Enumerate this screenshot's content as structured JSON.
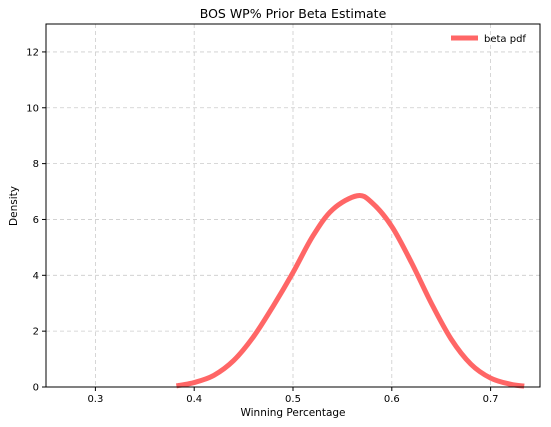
{
  "chart_data": {
    "type": "line",
    "title": "BOS WP% Prior Beta Estimate",
    "xlabel": "Winning Percentage",
    "ylabel": "Density",
    "xlim": [
      0.25,
      0.75
    ],
    "ylim": [
      0,
      13
    ],
    "xticks": [
      0.3,
      0.4,
      0.5,
      0.6,
      0.7
    ],
    "xtick_labels": [
      "0.3",
      "0.4",
      "0.5",
      "0.6",
      "0.7"
    ],
    "yticks": [
      0,
      2,
      4,
      6,
      8,
      10,
      12
    ],
    "ytick_labels": [
      "0",
      "2",
      "4",
      "6",
      "8",
      "10",
      "12"
    ],
    "grid": true,
    "legend": {
      "position": "top-right",
      "entries": [
        "beta pdf"
      ]
    },
    "series": [
      {
        "name": "beta pdf",
        "color": "#ff6666",
        "x": [
          0.382,
          0.4,
          0.42,
          0.44,
          0.46,
          0.48,
          0.5,
          0.52,
          0.54,
          0.565,
          0.58,
          0.6,
          0.62,
          0.64,
          0.66,
          0.68,
          0.7,
          0.72,
          0.734
        ],
        "y": [
          0.04,
          0.16,
          0.42,
          0.95,
          1.8,
          2.9,
          4.1,
          5.4,
          6.35,
          6.85,
          6.6,
          5.75,
          4.45,
          3.0,
          1.72,
          0.82,
          0.32,
          0.1,
          0.03
        ]
      }
    ]
  }
}
